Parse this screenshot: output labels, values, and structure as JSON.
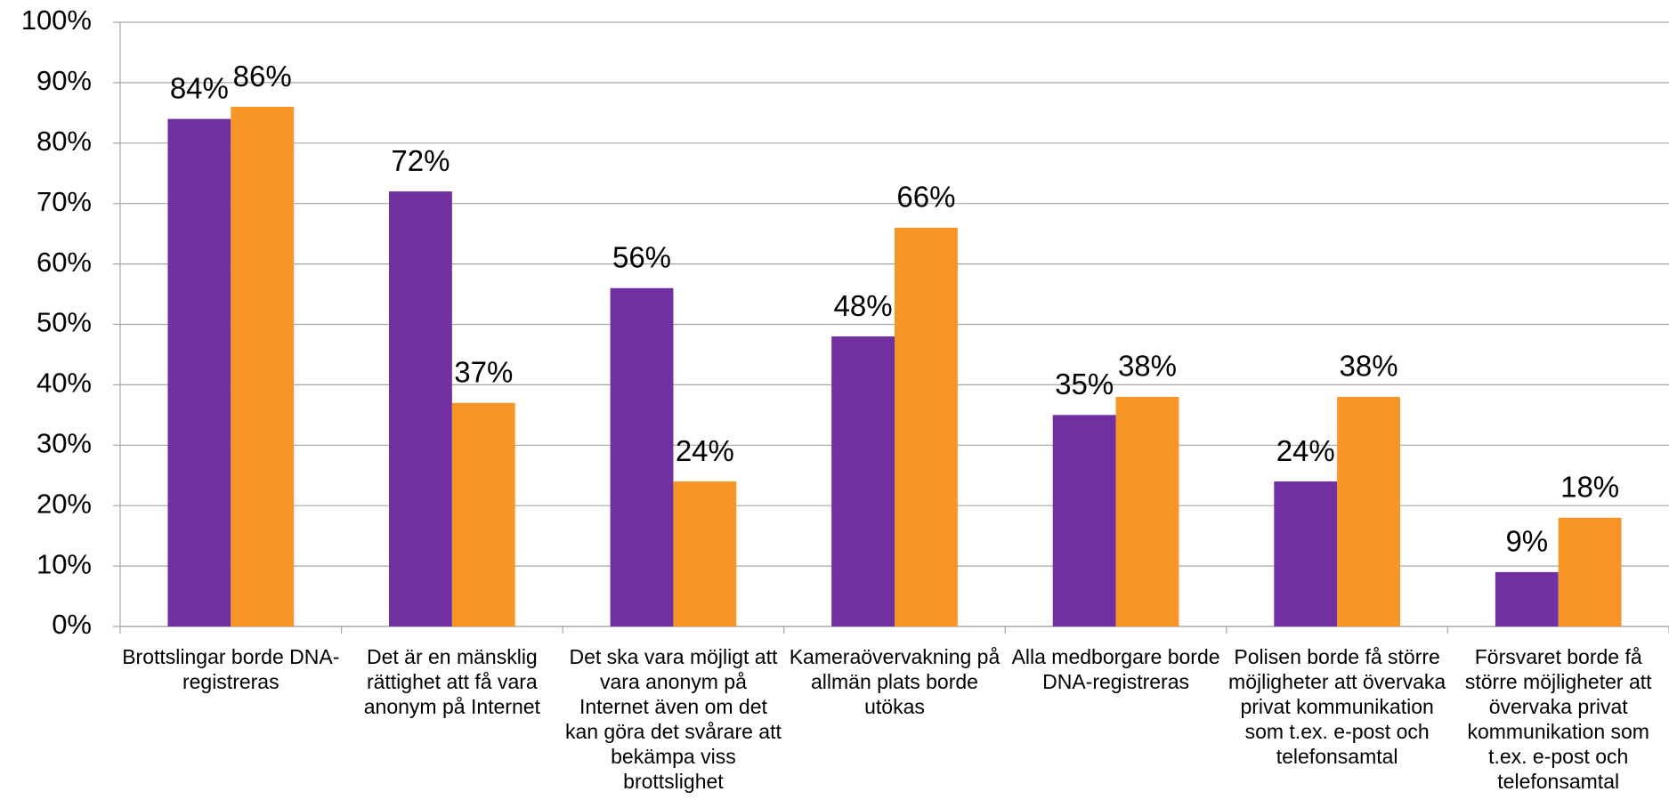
{
  "chart_data": {
    "type": "bar",
    "categories": [
      "Brottslingar borde DNA-registreras",
      "Det är en mänsklig rättighet att få vara anonym på Internet",
      "Det ska vara möjligt att vara anonym på Internet även om det kan göra det svårare att bekämpa viss brottslighet",
      "Kameraövervakning på allmän plats borde utökas",
      "Alla medborgare borde DNA-registreras",
      "Polisen borde få större möjligheter att övervaka privat kommunikation som t.ex. e-post och telefonsamtal",
      "Försvaret borde få större möjligheter att övervaka privat kommunikation som t.ex. e-post och telefonsamtal"
    ],
    "series": [
      {
        "color": "#7030a0",
        "values": [
          84,
          72,
          56,
          48,
          35,
          24,
          9
        ],
        "value_labels": [
          "84%",
          "72%",
          "56%",
          "48%",
          "35%",
          "24%",
          "9%"
        ]
      },
      {
        "color": "#f79626",
        "values": [
          86,
          37,
          24,
          66,
          38,
          38,
          18
        ],
        "value_labels": [
          "86%",
          "37%",
          "24%",
          "66%",
          "38%",
          "38%",
          "18%"
        ]
      }
    ],
    "ylim": [
      0,
      100
    ],
    "yticks": [
      {
        "value": 0,
        "label": "0%"
      },
      {
        "value": 10,
        "label": "10%"
      },
      {
        "value": 20,
        "label": "20%"
      },
      {
        "value": 30,
        "label": "30%"
      },
      {
        "value": 40,
        "label": "40%"
      },
      {
        "value": 50,
        "label": "50%"
      },
      {
        "value": 60,
        "label": "60%"
      },
      {
        "value": 70,
        "label": "70%"
      },
      {
        "value": 80,
        "label": "80%"
      },
      {
        "value": 90,
        "label": "90%"
      },
      {
        "value": 100,
        "label": "100%"
      }
    ],
    "grid": true
  }
}
